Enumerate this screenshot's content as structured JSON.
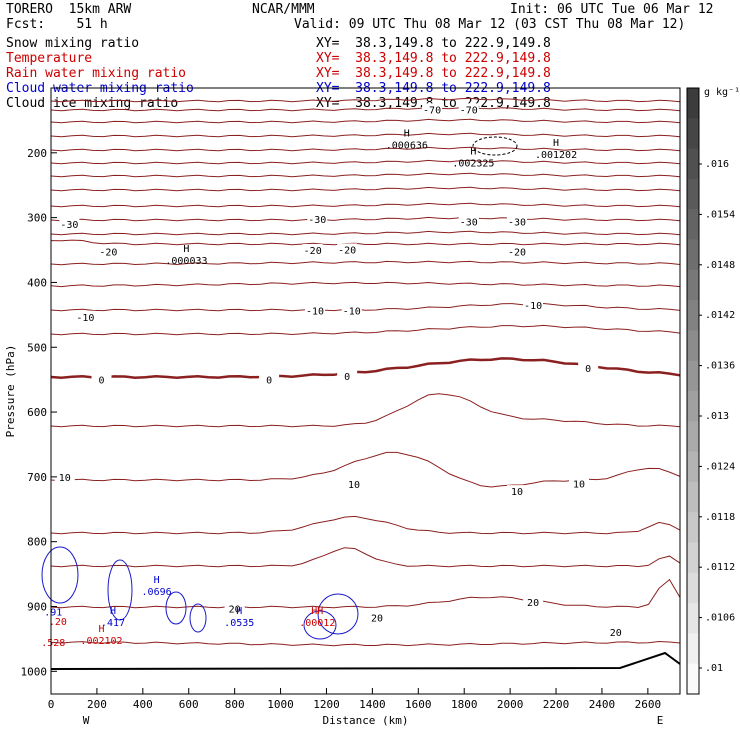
{
  "header": {
    "model": "TORERO  15km ARW",
    "center": "NCAR/MMM",
    "init": "Init: 06 UTC Tue 06 Mar 12",
    "fcst": "Fcst:    51 h",
    "valid": "Valid: 09 UTC Thu 08 Mar 12 (03 CST Thu 08 Mar 12)",
    "fields": [
      {
        "name": "Snow mixing ratio",
        "xy": "XY=  38.3,149.8 to 222.9,149.8",
        "color": "#000000"
      },
      {
        "name": "Temperature",
        "xy": "XY=  38.3,149.8 to 222.9,149.8",
        "color": "#cc0000"
      },
      {
        "name": "Rain water mixing ratio",
        "xy": "XY=  38.3,149.8 to 222.9,149.8",
        "color": "#cc0000"
      },
      {
        "name": "Cloud water mixing ratio",
        "xy": "XY=  38.3,149.8 to 222.9,149.8",
        "color": "#0000cc"
      },
      {
        "name": "Cloud ice mixing ratio",
        "xy": "XY=  38.3,149.8 to 222.9,149.8",
        "color": "#000000"
      }
    ]
  },
  "chart_data": {
    "type": "contour-cross-section",
    "xlabel": "Distance (km)",
    "ylabel": "Pressure (hPa)",
    "x_ticks": [
      0,
      200,
      400,
      600,
      800,
      1000,
      1200,
      1400,
      1600,
      1800,
      2000,
      2200,
      2400,
      2600
    ],
    "y_ticks": [
      200,
      300,
      400,
      500,
      600,
      700,
      800,
      900,
      1000
    ],
    "xlim": [
      0,
      2740
    ],
    "ylim": [
      100,
      1035
    ],
    "left_end_label": "W",
    "right_end_label": "E",
    "colorbar": {
      "unit": "g kg⁻¹",
      "ticks": [
        ".016",
        ".0154",
        ".0148",
        ".0142",
        ".0136",
        ".013",
        ".0124",
        ".0118",
        ".0112",
        ".0106",
        ".01"
      ]
    },
    "temperature_labels": [
      {
        "text": "-70",
        "x": 1660,
        "p": 133
      },
      {
        "text": "-70",
        "x": 1820,
        "p": 133
      },
      {
        "text": "-30",
        "x": 80,
        "p": 310
      },
      {
        "text": "-30",
        "x": 1160,
        "p": 302
      },
      {
        "text": "-30",
        "x": 1820,
        "p": 306
      },
      {
        "text": "-30",
        "x": 2030,
        "p": 306
      },
      {
        "text": "-20",
        "x": 250,
        "p": 352
      },
      {
        "text": "-20",
        "x": 1140,
        "p": 350
      },
      {
        "text": "-20",
        "x": 1290,
        "p": 349
      },
      {
        "text": "-20",
        "x": 2030,
        "p": 352
      },
      {
        "text": "-10",
        "x": 150,
        "p": 453
      },
      {
        "text": "-10",
        "x": 1150,
        "p": 443
      },
      {
        "text": "-10",
        "x": 1310,
        "p": 443
      },
      {
        "text": "-10",
        "x": 2100,
        "p": 435
      },
      {
        "text": "0",
        "x": 220,
        "p": 550
      },
      {
        "text": "0",
        "x": 950,
        "p": 550
      },
      {
        "text": "0",
        "x": 1290,
        "p": 544
      },
      {
        "text": "0",
        "x": 2340,
        "p": 532
      },
      {
        "text": "10",
        "x": 60,
        "p": 700
      },
      {
        "text": "10",
        "x": 1320,
        "p": 711
      },
      {
        "text": "10",
        "x": 2030,
        "p": 722
      },
      {
        "text": "10",
        "x": 2300,
        "p": 710
      },
      {
        "text": "20",
        "x": 800,
        "p": 903
      },
      {
        "text": "20",
        "x": 1420,
        "p": 917
      },
      {
        "text": "20",
        "x": 2100,
        "p": 893
      },
      {
        "text": "20",
        "x": 2460,
        "p": 939
      }
    ],
    "maxima_labels": [
      {
        "mark": "H",
        "value": ".000636",
        "x": 1550,
        "p": 187,
        "color": "#000000"
      },
      {
        "mark": "H",
        "value": ".002325",
        "x": 1840,
        "p": 215,
        "color": "#000000"
      },
      {
        "mark": "H",
        "value": ".001202",
        "x": 2200,
        "p": 202,
        "color": "#000000"
      },
      {
        "mark": "H",
        "value": ".000033",
        "x": 590,
        "p": 365,
        "color": "#000000"
      },
      {
        "mark": "H",
        "value": ".0696",
        "x": 460,
        "p": 876,
        "color": "#0000cc"
      },
      {
        "mark": "H",
        "value": ".417",
        "x": 270,
        "p": 924,
        "color": "#0000cc"
      },
      {
        "mark": "H",
        "value": ".0535",
        "x": 820,
        "p": 924,
        "color": "#0000cc"
      },
      {
        "mark": "H",
        "value": ".002102",
        "x": 220,
        "p": 952,
        "color": "#cc0000"
      },
      {
        "mark": "HH",
        "value": ".00012",
        "x": 1160,
        "p": 924,
        "color": "#cc0000"
      },
      {
        "mark": "",
        "value": ".91",
        "x": 10,
        "p": 908,
        "color": "#0000cc"
      },
      {
        "mark": "",
        "value": ".20",
        "x": 30,
        "p": 922,
        "color": "#cc0000"
      },
      {
        "mark": "",
        "value": ".528",
        "x": 10,
        "p": 955,
        "color": "#cc0000"
      }
    ]
  }
}
